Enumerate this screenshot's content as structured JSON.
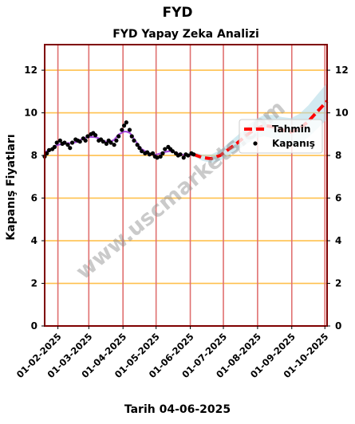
{
  "suptitle": "FYD",
  "chart_data": {
    "type": "line",
    "title": "FYD Yapay Zeka Analizi",
    "xlabel": "Tarih 04-06-2025",
    "ylabel": "Kapanış Fiyatları",
    "ylim": [
      0,
      13.2
    ],
    "yticks": [
      0,
      2,
      4,
      6,
      8,
      10,
      12
    ],
    "xlim": [
      "2025-01-20",
      "2025-10-03"
    ],
    "xtick_labels": [
      "01-02-2025",
      "01-03-2025",
      "01-04-2025",
      "01-05-2025",
      "01-06-2025",
      "01-07-2025",
      "01-08-2025",
      "01-09-2025",
      "01-10-2025"
    ],
    "xtick_dates": [
      "2025-02-01",
      "2025-03-01",
      "2025-04-01",
      "2025-05-01",
      "2025-06-01",
      "2025-07-01",
      "2025-08-01",
      "2025-09-01",
      "2025-10-01"
    ],
    "grid": true,
    "legend": {
      "placement": "center-right",
      "entries": [
        "Tahmin",
        "Kapanış"
      ]
    },
    "watermark": "www.uscmarkets.com",
    "colors": {
      "kapanis": "#000000",
      "tahmin": "#ff0000",
      "smooth": "#9b30d9",
      "band": "#add8e6",
      "hgrid": "#ffc04d",
      "vgrid": "#e07070",
      "frame": "#7f0000"
    },
    "series": [
      {
        "name": "Kapanış",
        "x": [
          "2025-01-20",
          "2025-01-22",
          "2025-01-24",
          "2025-01-27",
          "2025-01-29",
          "2025-01-31",
          "2025-02-03",
          "2025-02-05",
          "2025-02-07",
          "2025-02-10",
          "2025-02-12",
          "2025-02-14",
          "2025-02-17",
          "2025-02-19",
          "2025-02-21",
          "2025-02-24",
          "2025-02-26",
          "2025-02-28",
          "2025-03-03",
          "2025-03-05",
          "2025-03-07",
          "2025-03-10",
          "2025-03-12",
          "2025-03-14",
          "2025-03-17",
          "2025-03-19",
          "2025-03-21",
          "2025-03-24",
          "2025-03-26",
          "2025-03-28",
          "2025-03-31",
          "2025-04-02",
          "2025-04-04",
          "2025-04-07",
          "2025-04-09",
          "2025-04-11",
          "2025-04-14",
          "2025-04-16",
          "2025-04-18",
          "2025-04-21",
          "2025-04-23",
          "2025-04-25",
          "2025-04-28",
          "2025-04-30",
          "2025-05-02",
          "2025-05-05",
          "2025-05-07",
          "2025-05-09",
          "2025-05-12",
          "2025-05-14",
          "2025-05-16",
          "2025-05-19",
          "2025-05-21",
          "2025-05-23",
          "2025-05-26",
          "2025-05-28",
          "2025-05-30",
          "2025-06-02",
          "2025-06-04"
        ],
        "y": [
          7.95,
          8.1,
          8.25,
          8.3,
          8.4,
          8.6,
          8.7,
          8.55,
          8.6,
          8.5,
          8.35,
          8.6,
          8.75,
          8.7,
          8.65,
          8.8,
          8.7,
          8.9,
          9.0,
          9.05,
          8.95,
          8.7,
          8.75,
          8.65,
          8.55,
          8.7,
          8.6,
          8.5,
          8.7,
          8.9,
          9.2,
          9.4,
          9.55,
          9.2,
          8.9,
          8.7,
          8.5,
          8.35,
          8.2,
          8.1,
          8.15,
          8.05,
          8.1,
          7.95,
          7.9,
          7.95,
          8.1,
          8.3,
          8.4,
          8.3,
          8.2,
          8.1,
          8.0,
          8.05,
          7.9,
          8.05,
          8.0,
          8.1,
          8.05
        ]
      },
      {
        "name": "Tahmin",
        "x": [
          "2025-06-04",
          "2025-06-12",
          "2025-06-20",
          "2025-06-28",
          "2025-07-06",
          "2025-07-14",
          "2025-07-22",
          "2025-07-30",
          "2025-08-07",
          "2025-08-15",
          "2025-08-23",
          "2025-08-31",
          "2025-09-08",
          "2025-09-16",
          "2025-09-24",
          "2025-10-03"
        ],
        "y": [
          8.05,
          7.9,
          7.85,
          8.0,
          8.3,
          8.6,
          8.95,
          9.25,
          9.4,
          9.35,
          9.2,
          9.1,
          9.25,
          9.6,
          10.05,
          10.55
        ],
        "lower": [
          7.95,
          7.75,
          7.65,
          7.75,
          8.0,
          8.25,
          8.55,
          8.8,
          8.9,
          8.8,
          8.6,
          8.45,
          8.55,
          8.85,
          9.25,
          9.7
        ],
        "upper": [
          8.15,
          8.05,
          8.05,
          8.25,
          8.6,
          8.95,
          9.35,
          9.7,
          9.9,
          9.9,
          9.8,
          9.75,
          9.95,
          10.35,
          10.85,
          11.4
        ]
      }
    ]
  }
}
